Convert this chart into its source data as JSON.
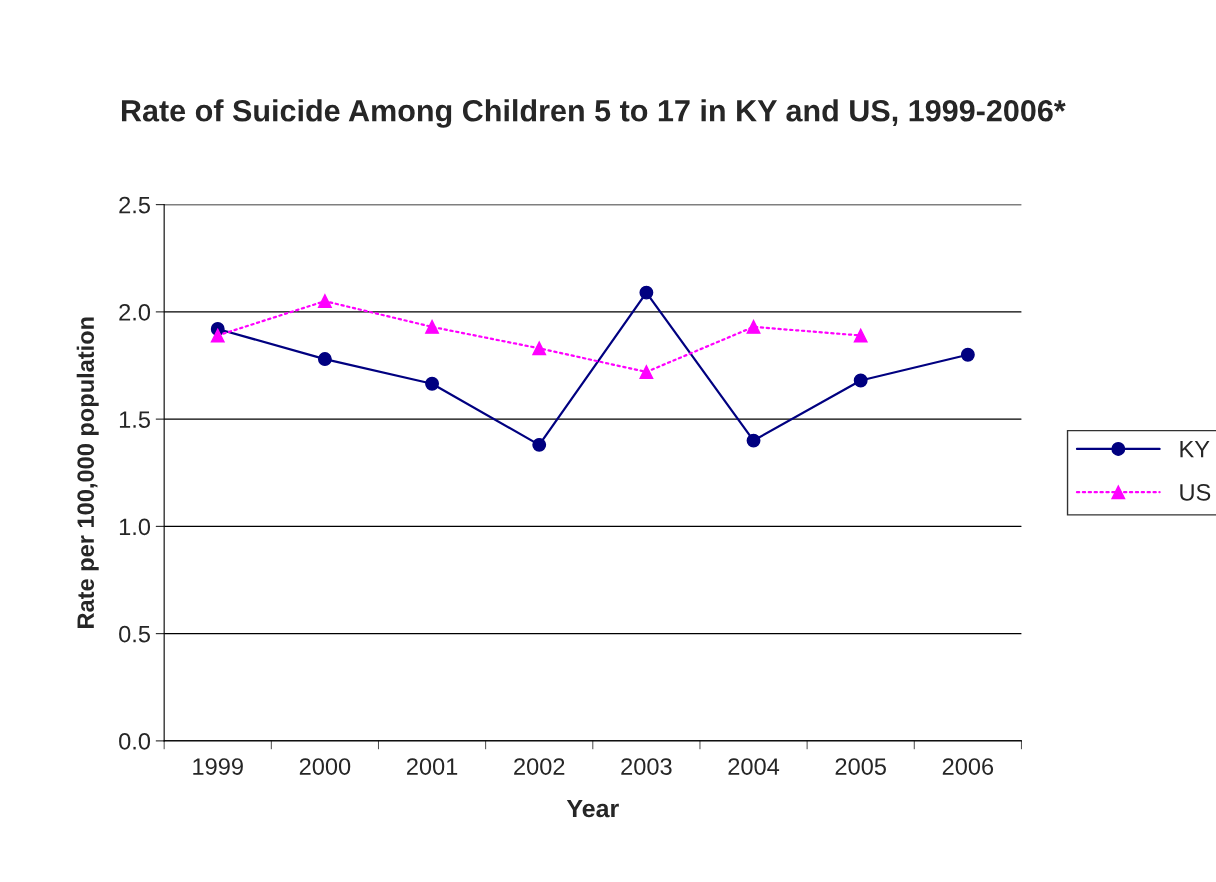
{
  "chart_data": {
    "type": "line",
    "title": "Rate of Suicide Among Children 5 to 17 in KY and US, 1999-2006*",
    "xlabel": "Year",
    "ylabel": "Rate per 100,000 population",
    "categories": [
      "1999",
      "2000",
      "2001",
      "2002",
      "2003",
      "2004",
      "2005",
      "2006"
    ],
    "series": [
      {
        "name": "KY",
        "color": "#000080",
        "marker": "circle",
        "line_style": "solid",
        "values": [
          1.92,
          1.78,
          1.665,
          1.38,
          2.09,
          1.4,
          1.68,
          1.8
        ]
      },
      {
        "name": "US",
        "color": "#ff00ff",
        "marker": "triangle",
        "line_style": "dotted",
        "values": [
          1.89,
          2.05,
          1.93,
          1.83,
          1.72,
          1.93,
          1.89,
          null
        ]
      }
    ],
    "ylim": [
      0,
      2.5
    ],
    "yticks": [
      {
        "value": 0,
        "label": "0.0"
      },
      {
        "value": 0.5,
        "label": "0.5"
      },
      {
        "value": 1,
        "label": "1.0"
      },
      {
        "value": 1.5,
        "label": "1.5"
      },
      {
        "value": 2,
        "label": "2.0"
      },
      {
        "value": 2.5,
        "label": "2.5"
      }
    ],
    "grid": "y",
    "legend": "right"
  }
}
